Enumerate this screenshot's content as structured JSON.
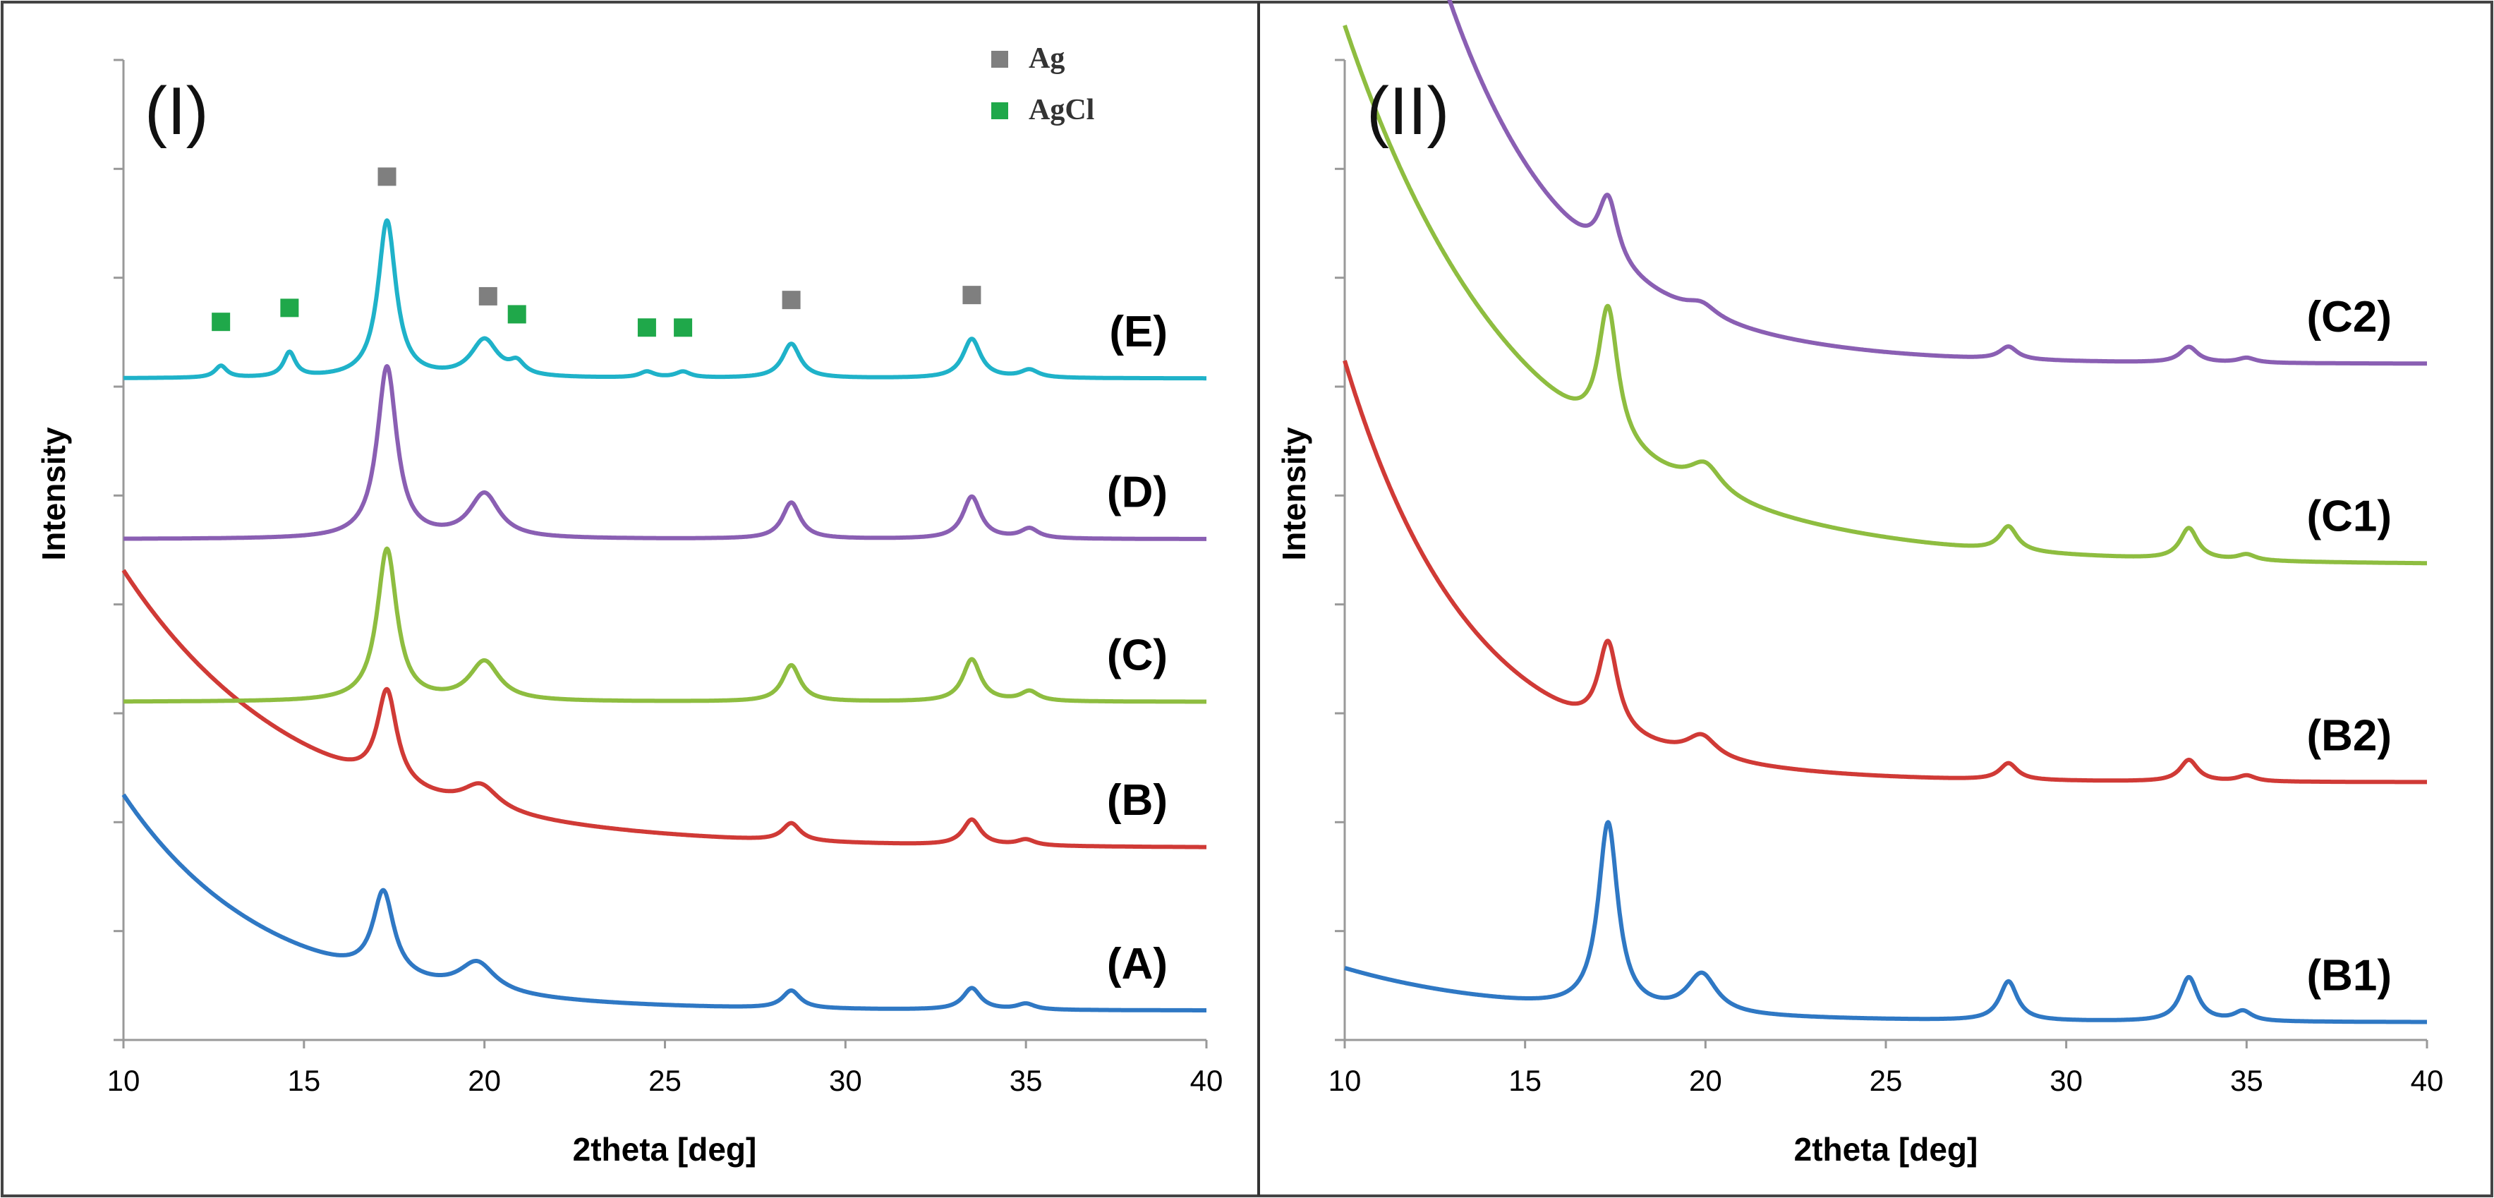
{
  "chart_data": [
    {
      "type": "line",
      "panel_label": "(I)",
      "xlabel": "2theta [deg]",
      "ylabel": "Intensity",
      "xlim": [
        10,
        40
      ],
      "x_ticks": [
        "10",
        "15",
        "20",
        "25",
        "30",
        "35",
        "40"
      ],
      "legend": [
        {
          "label": "Ag",
          "color": "#7f7f7f"
        },
        {
          "label": "AgCl",
          "color": "#1fa84a"
        }
      ],
      "peak_markers": [
        {
          "phase": "Ag",
          "x": [
            17.3,
            20.1,
            28.5,
            33.5
          ]
        },
        {
          "phase": "AgCl",
          "x": [
            12.7,
            14.6,
            20.9,
            24.5,
            25.5
          ]
        }
      ],
      "series": [
        {
          "name": "(A)",
          "color": "#2f78c4",
          "baseline": 0.03,
          "start": 0.22,
          "decay": 4.0,
          "peaks": [
            [
              17.2,
              0.085,
              0.35
            ],
            [
              19.8,
              0.03,
              0.6
            ],
            [
              28.5,
              0.018,
              0.3
            ],
            [
              33.5,
              0.022,
              0.3
            ],
            [
              35.0,
              0.006,
              0.3
            ]
          ]
        },
        {
          "name": "(B)",
          "color": "#d03a36",
          "baseline": 0.196,
          "start": 0.283,
          "decay": 5.0,
          "peaks": [
            [
              17.3,
              0.095,
              0.33
            ],
            [
              19.9,
              0.025,
              0.6
            ],
            [
              28.5,
              0.018,
              0.3
            ],
            [
              33.5,
              0.026,
              0.3
            ],
            [
              35.0,
              0.006,
              0.3
            ]
          ]
        },
        {
          "name": "(C)",
          "color": "#8ebd40",
          "baseline": 0.345,
          "start": 0.0,
          "decay": 5.0,
          "peaks": [
            [
              17.3,
              0.155,
              0.33
            ],
            [
              20.0,
              0.04,
              0.5
            ],
            [
              28.5,
              0.037,
              0.3
            ],
            [
              33.5,
              0.043,
              0.3
            ],
            [
              35.1,
              0.01,
              0.3
            ]
          ]
        },
        {
          "name": "(D)",
          "color": "#8a5fb3",
          "baseline": 0.511,
          "start": 0.0,
          "decay": 5.0,
          "peaks": [
            [
              17.3,
              0.175,
              0.33
            ],
            [
              20.0,
              0.045,
              0.5
            ],
            [
              28.5,
              0.037,
              0.3
            ],
            [
              33.5,
              0.043,
              0.3
            ],
            [
              35.1,
              0.01,
              0.3
            ]
          ]
        },
        {
          "name": "(E)",
          "color": "#1fb2c9",
          "baseline": 0.675,
          "start": 0.0,
          "decay": 5.0,
          "peaks": [
            [
              12.7,
              0.012,
              0.2
            ],
            [
              14.6,
              0.025,
              0.2
            ],
            [
              17.3,
              0.16,
              0.3
            ],
            [
              20.0,
              0.038,
              0.45
            ],
            [
              20.9,
              0.012,
              0.25
            ],
            [
              24.5,
              0.006,
              0.25
            ],
            [
              25.5,
              0.006,
              0.25
            ],
            [
              28.5,
              0.035,
              0.3
            ],
            [
              33.5,
              0.04,
              0.3
            ],
            [
              35.1,
              0.008,
              0.3
            ]
          ]
        }
      ]
    },
    {
      "type": "line",
      "panel_label": "(II)",
      "xlabel": "2theta [deg]",
      "ylabel": "Intensity",
      "xlim": [
        10,
        40
      ],
      "x_ticks": [
        "10",
        "15",
        "20",
        "25",
        "30",
        "35",
        "40"
      ],
      "series": [
        {
          "name": "(B1)",
          "color": "#2f78c4",
          "baseline": 0.018,
          "start": 0.055,
          "decay": 5.0,
          "peaks": [
            [
              17.3,
              0.19,
              0.33
            ],
            [
              19.9,
              0.04,
              0.5
            ],
            [
              28.4,
              0.04,
              0.3
            ],
            [
              33.4,
              0.045,
              0.3
            ],
            [
              34.9,
              0.01,
              0.3
            ]
          ]
        },
        {
          "name": "(B2)",
          "color": "#d03a36",
          "baseline": 0.263,
          "start": 0.43,
          "decay": 3.5,
          "peaks": [
            [
              17.3,
              0.09,
              0.33
            ],
            [
              19.9,
              0.022,
              0.5
            ],
            [
              28.4,
              0.017,
              0.3
            ],
            [
              33.4,
              0.022,
              0.3
            ],
            [
              35.0,
              0.006,
              0.3
            ]
          ]
        },
        {
          "name": "(C1)",
          "color": "#8ebd40",
          "baseline": 0.485,
          "start": 0.55,
          "decay": 5.0,
          "peaks": [
            [
              17.3,
              0.135,
              0.33
            ],
            [
              20.0,
              0.028,
              0.55
            ],
            [
              28.4,
              0.025,
              0.3
            ],
            [
              33.4,
              0.032,
              0.3
            ],
            [
              35.0,
              0.006,
              0.3
            ]
          ]
        },
        {
          "name": "(C2)",
          "color": "#8a5fb3",
          "baseline": 0.69,
          "start": 0.85,
          "decay": 3.5,
          "peaks": [
            [
              17.3,
              0.066,
              0.33
            ],
            [
              19.9,
              0.012,
              0.5
            ],
            [
              28.4,
              0.013,
              0.3
            ],
            [
              33.4,
              0.016,
              0.3
            ],
            [
              35.0,
              0.005,
              0.3
            ]
          ]
        }
      ]
    }
  ]
}
